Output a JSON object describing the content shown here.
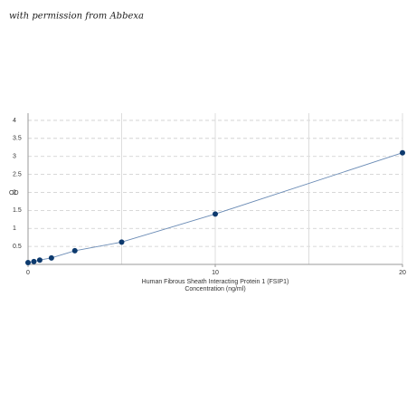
{
  "watermark": "with permission from Abbexa",
  "chart_data": {
    "type": "line",
    "ylabel": "OD",
    "xlabel": [
      "Human Fibrous Sheath Interacting Protein 1 (FSIP1)",
      "Concentration (ng/ml)"
    ],
    "x": [
      0,
      0.3125,
      0.625,
      1.25,
      2.5,
      5,
      10,
      20
    ],
    "series": [
      {
        "color": "#0d3a6e",
        "values": [
          0.05,
          0.08,
          0.12,
          0.18,
          0.38,
          0.62,
          1.4,
          3.1
        ]
      }
    ],
    "xlim": [
      0,
      20
    ],
    "ylim": [
      0,
      4.2
    ],
    "xticks": [
      0,
      10,
      20
    ],
    "xgrid": [
      5,
      10,
      15,
      20
    ],
    "yticks": [
      0.5,
      1,
      1.5,
      2,
      2.5,
      3,
      3.5,
      4
    ],
    "grid": true
  }
}
